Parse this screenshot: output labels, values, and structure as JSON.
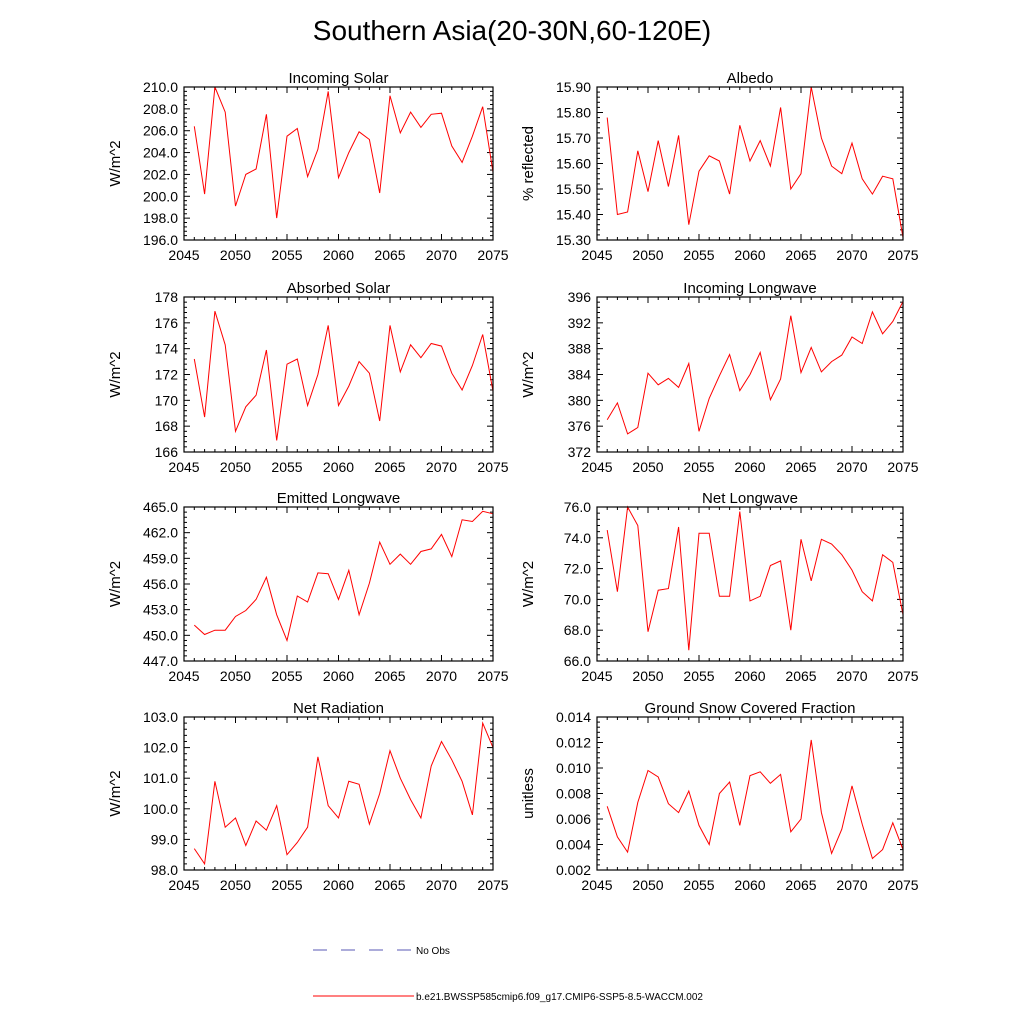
{
  "title": "Southern Asia(20-30N,60-120E)",
  "legend": {
    "obs_label": "No Obs",
    "obs_color": "#5a5ab4",
    "model_label": "b.e21.BWSSP585cmip6.f09_g17.CMIP6-SSP5-8.5-WACCM.002",
    "model_color": "#ff0000"
  },
  "chart_data": [
    {
      "type": "line",
      "title": "Incoming Solar",
      "ylabel": "W/m^2",
      "xlim": [
        2045,
        2075
      ],
      "xticks": [
        2045,
        2050,
        2055,
        2060,
        2065,
        2070,
        2075
      ],
      "ylim": [
        196.0,
        210.0
      ],
      "yticks": [
        "196.0",
        "198.0",
        "200.0",
        "202.0",
        "204.0",
        "206.0",
        "208.0",
        "210.0"
      ],
      "x": [
        2046,
        2047,
        2048,
        2049,
        2050,
        2051,
        2052,
        2053,
        2054,
        2055,
        2056,
        2057,
        2058,
        2059,
        2060,
        2061,
        2062,
        2063,
        2064,
        2065,
        2066,
        2067,
        2068,
        2069,
        2070,
        2071,
        2072,
        2073,
        2074,
        2075
      ],
      "values": [
        206.4,
        200.2,
        210.0,
        207.7,
        199.1,
        202.0,
        202.5,
        207.5,
        198.0,
        205.5,
        206.2,
        201.8,
        204.3,
        209.6,
        201.7,
        204.0,
        205.9,
        205.2,
        200.3,
        209.2,
        205.8,
        207.7,
        206.3,
        207.5,
        207.6,
        204.6,
        203.1,
        205.5,
        208.2,
        202.2
      ]
    },
    {
      "type": "line",
      "title": "Albedo",
      "ylabel": "% reflected",
      "xlim": [
        2045,
        2075
      ],
      "xticks": [
        2045,
        2050,
        2055,
        2060,
        2065,
        2070,
        2075
      ],
      "ylim": [
        15.3,
        15.9
      ],
      "yticks": [
        "15.30",
        "15.40",
        "15.50",
        "15.60",
        "15.70",
        "15.80",
        "15.90"
      ],
      "x": [
        2046,
        2047,
        2048,
        2049,
        2050,
        2051,
        2052,
        2053,
        2054,
        2055,
        2056,
        2057,
        2058,
        2059,
        2060,
        2061,
        2062,
        2063,
        2064,
        2065,
        2066,
        2067,
        2068,
        2069,
        2070,
        2071,
        2072,
        2073,
        2074,
        2075
      ],
      "values": [
        15.78,
        15.4,
        15.41,
        15.65,
        15.49,
        15.69,
        15.51,
        15.71,
        15.36,
        15.57,
        15.63,
        15.61,
        15.48,
        15.75,
        15.61,
        15.69,
        15.59,
        15.82,
        15.5,
        15.56,
        15.9,
        15.7,
        15.59,
        15.56,
        15.68,
        15.54,
        15.48,
        15.55,
        15.54,
        15.31
      ]
    },
    {
      "type": "line",
      "title": "Absorbed Solar",
      "ylabel": "W/m^2",
      "xlim": [
        2045,
        2075
      ],
      "xticks": [
        2045,
        2050,
        2055,
        2060,
        2065,
        2070,
        2075
      ],
      "ylim": [
        166,
        178
      ],
      "yticks": [
        "166",
        "168",
        "170",
        "172",
        "174",
        "176",
        "178"
      ],
      "x": [
        2046,
        2047,
        2048,
        2049,
        2050,
        2051,
        2052,
        2053,
        2054,
        2055,
        2056,
        2057,
        2058,
        2059,
        2060,
        2061,
        2062,
        2063,
        2064,
        2065,
        2066,
        2067,
        2068,
        2069,
        2070,
        2071,
        2072,
        2073,
        2074,
        2075
      ],
      "values": [
        173.2,
        168.7,
        176.9,
        174.3,
        167.6,
        169.5,
        170.4,
        173.9,
        166.9,
        172.8,
        173.2,
        169.6,
        172.0,
        175.8,
        169.6,
        171.1,
        173.0,
        172.1,
        168.4,
        175.8,
        172.2,
        174.3,
        173.3,
        174.4,
        174.2,
        172.1,
        170.8,
        172.7,
        175.1,
        170.7
      ]
    },
    {
      "type": "line",
      "title": "Incoming Longwave",
      "ylabel": "W/m^2",
      "xlim": [
        2045,
        2075
      ],
      "xticks": [
        2045,
        2050,
        2055,
        2060,
        2065,
        2070,
        2075
      ],
      "ylim": [
        372,
        396
      ],
      "yticks": [
        "372",
        "376",
        "380",
        "384",
        "388",
        "392",
        "396"
      ],
      "x": [
        2046,
        2047,
        2048,
        2049,
        2050,
        2051,
        2052,
        2053,
        2054,
        2055,
        2056,
        2057,
        2058,
        2059,
        2060,
        2061,
        2062,
        2063,
        2064,
        2065,
        2066,
        2067,
        2068,
        2069,
        2070,
        2071,
        2072,
        2073,
        2074,
        2075
      ],
      "values": [
        377.0,
        379.6,
        374.8,
        375.8,
        384.2,
        382.4,
        383.4,
        382.0,
        385.7,
        375.2,
        380.3,
        383.8,
        387.1,
        381.5,
        384.0,
        387.4,
        380.1,
        383.3,
        393.1,
        384.3,
        388.2,
        384.4,
        386.0,
        387.0,
        389.8,
        388.8,
        393.7,
        390.3,
        392.2,
        395.3
      ]
    },
    {
      "type": "line",
      "title": "Emitted Longwave",
      "ylabel": "W/m^2",
      "xlim": [
        2045,
        2075
      ],
      "xticks": [
        2045,
        2050,
        2055,
        2060,
        2065,
        2070,
        2075
      ],
      "ylim": [
        447.0,
        465.0
      ],
      "yticks": [
        "447.0",
        "450.0",
        "453.0",
        "456.0",
        "459.0",
        "462.0",
        "465.0"
      ],
      "x": [
        2046,
        2047,
        2048,
        2049,
        2050,
        2051,
        2052,
        2053,
        2054,
        2055,
        2056,
        2057,
        2058,
        2059,
        2060,
        2061,
        2062,
        2063,
        2064,
        2065,
        2066,
        2067,
        2068,
        2069,
        2070,
        2071,
        2072,
        2073,
        2074,
        2075
      ],
      "values": [
        451.2,
        450.1,
        450.6,
        450.6,
        452.2,
        452.9,
        454.2,
        456.8,
        452.4,
        449.4,
        454.6,
        453.9,
        457.3,
        457.2,
        454.2,
        457.6,
        452.4,
        456.1,
        460.9,
        458.3,
        459.5,
        458.3,
        459.8,
        460.1,
        461.8,
        459.2,
        463.5,
        463.3,
        464.5,
        464.2
      ]
    },
    {
      "type": "line",
      "title": "Net Longwave",
      "ylabel": "W/m^2",
      "xlim": [
        2045,
        2075
      ],
      "xticks": [
        2045,
        2050,
        2055,
        2060,
        2065,
        2070,
        2075
      ],
      "ylim": [
        66.0,
        76.0
      ],
      "yticks": [
        "66.0",
        "68.0",
        "70.0",
        "72.0",
        "74.0",
        "76.0"
      ],
      "x": [
        2046,
        2047,
        2048,
        2049,
        2050,
        2051,
        2052,
        2053,
        2054,
        2055,
        2056,
        2057,
        2058,
        2059,
        2060,
        2061,
        2062,
        2063,
        2064,
        2065,
        2066,
        2067,
        2068,
        2069,
        2070,
        2071,
        2072,
        2073,
        2074,
        2075
      ],
      "values": [
        74.5,
        70.5,
        76.0,
        74.8,
        67.9,
        70.6,
        70.7,
        74.7,
        66.7,
        74.3,
        74.3,
        70.2,
        70.2,
        75.7,
        69.9,
        70.2,
        72.2,
        72.5,
        68.0,
        73.9,
        71.2,
        73.9,
        73.6,
        72.9,
        71.9,
        70.5,
        69.9,
        72.9,
        72.4,
        69.0
      ]
    },
    {
      "type": "line",
      "title": "Net Radiation",
      "ylabel": "W/m^2",
      "xlim": [
        2045,
        2075
      ],
      "xticks": [
        2045,
        2050,
        2055,
        2060,
        2065,
        2070,
        2075
      ],
      "ylim": [
        98.0,
        103.0
      ],
      "yticks": [
        "98.0",
        "99.0",
        "100.0",
        "101.0",
        "102.0",
        "103.0"
      ],
      "x": [
        2046,
        2047,
        2048,
        2049,
        2050,
        2051,
        2052,
        2053,
        2054,
        2055,
        2056,
        2057,
        2058,
        2059,
        2060,
        2061,
        2062,
        2063,
        2064,
        2065,
        2066,
        2067,
        2068,
        2069,
        2070,
        2071,
        2072,
        2073,
        2074,
        2075
      ],
      "values": [
        98.7,
        98.2,
        100.9,
        99.4,
        99.7,
        98.8,
        99.6,
        99.3,
        100.1,
        98.5,
        98.9,
        99.4,
        101.7,
        100.1,
        99.7,
        100.9,
        100.8,
        99.5,
        100.5,
        101.9,
        101.0,
        100.3,
        99.7,
        101.4,
        102.2,
        101.6,
        100.9,
        99.8,
        102.8,
        102.0
      ]
    },
    {
      "type": "line",
      "title": "Ground Snow Covered Fraction",
      "ylabel": "unitless",
      "xlim": [
        2045,
        2075
      ],
      "xticks": [
        2045,
        2050,
        2055,
        2060,
        2065,
        2070,
        2075
      ],
      "ylim": [
        0.002,
        0.014
      ],
      "yticks": [
        "0.002",
        "0.004",
        "0.006",
        "0.008",
        "0.010",
        "0.012",
        "0.014"
      ],
      "x": [
        2046,
        2047,
        2048,
        2049,
        2050,
        2051,
        2052,
        2053,
        2054,
        2055,
        2056,
        2057,
        2058,
        2059,
        2060,
        2061,
        2062,
        2063,
        2064,
        2065,
        2066,
        2067,
        2068,
        2069,
        2070,
        2071,
        2072,
        2073,
        2074,
        2075
      ],
      "values": [
        0.007,
        0.0046,
        0.0034,
        0.0073,
        0.0098,
        0.0093,
        0.0072,
        0.0065,
        0.0082,
        0.0055,
        0.004,
        0.008,
        0.0089,
        0.0055,
        0.0094,
        0.0097,
        0.0088,
        0.0095,
        0.005,
        0.006,
        0.0122,
        0.0065,
        0.0033,
        0.0052,
        0.0086,
        0.0056,
        0.0029,
        0.0036,
        0.0057,
        0.0036
      ]
    }
  ]
}
